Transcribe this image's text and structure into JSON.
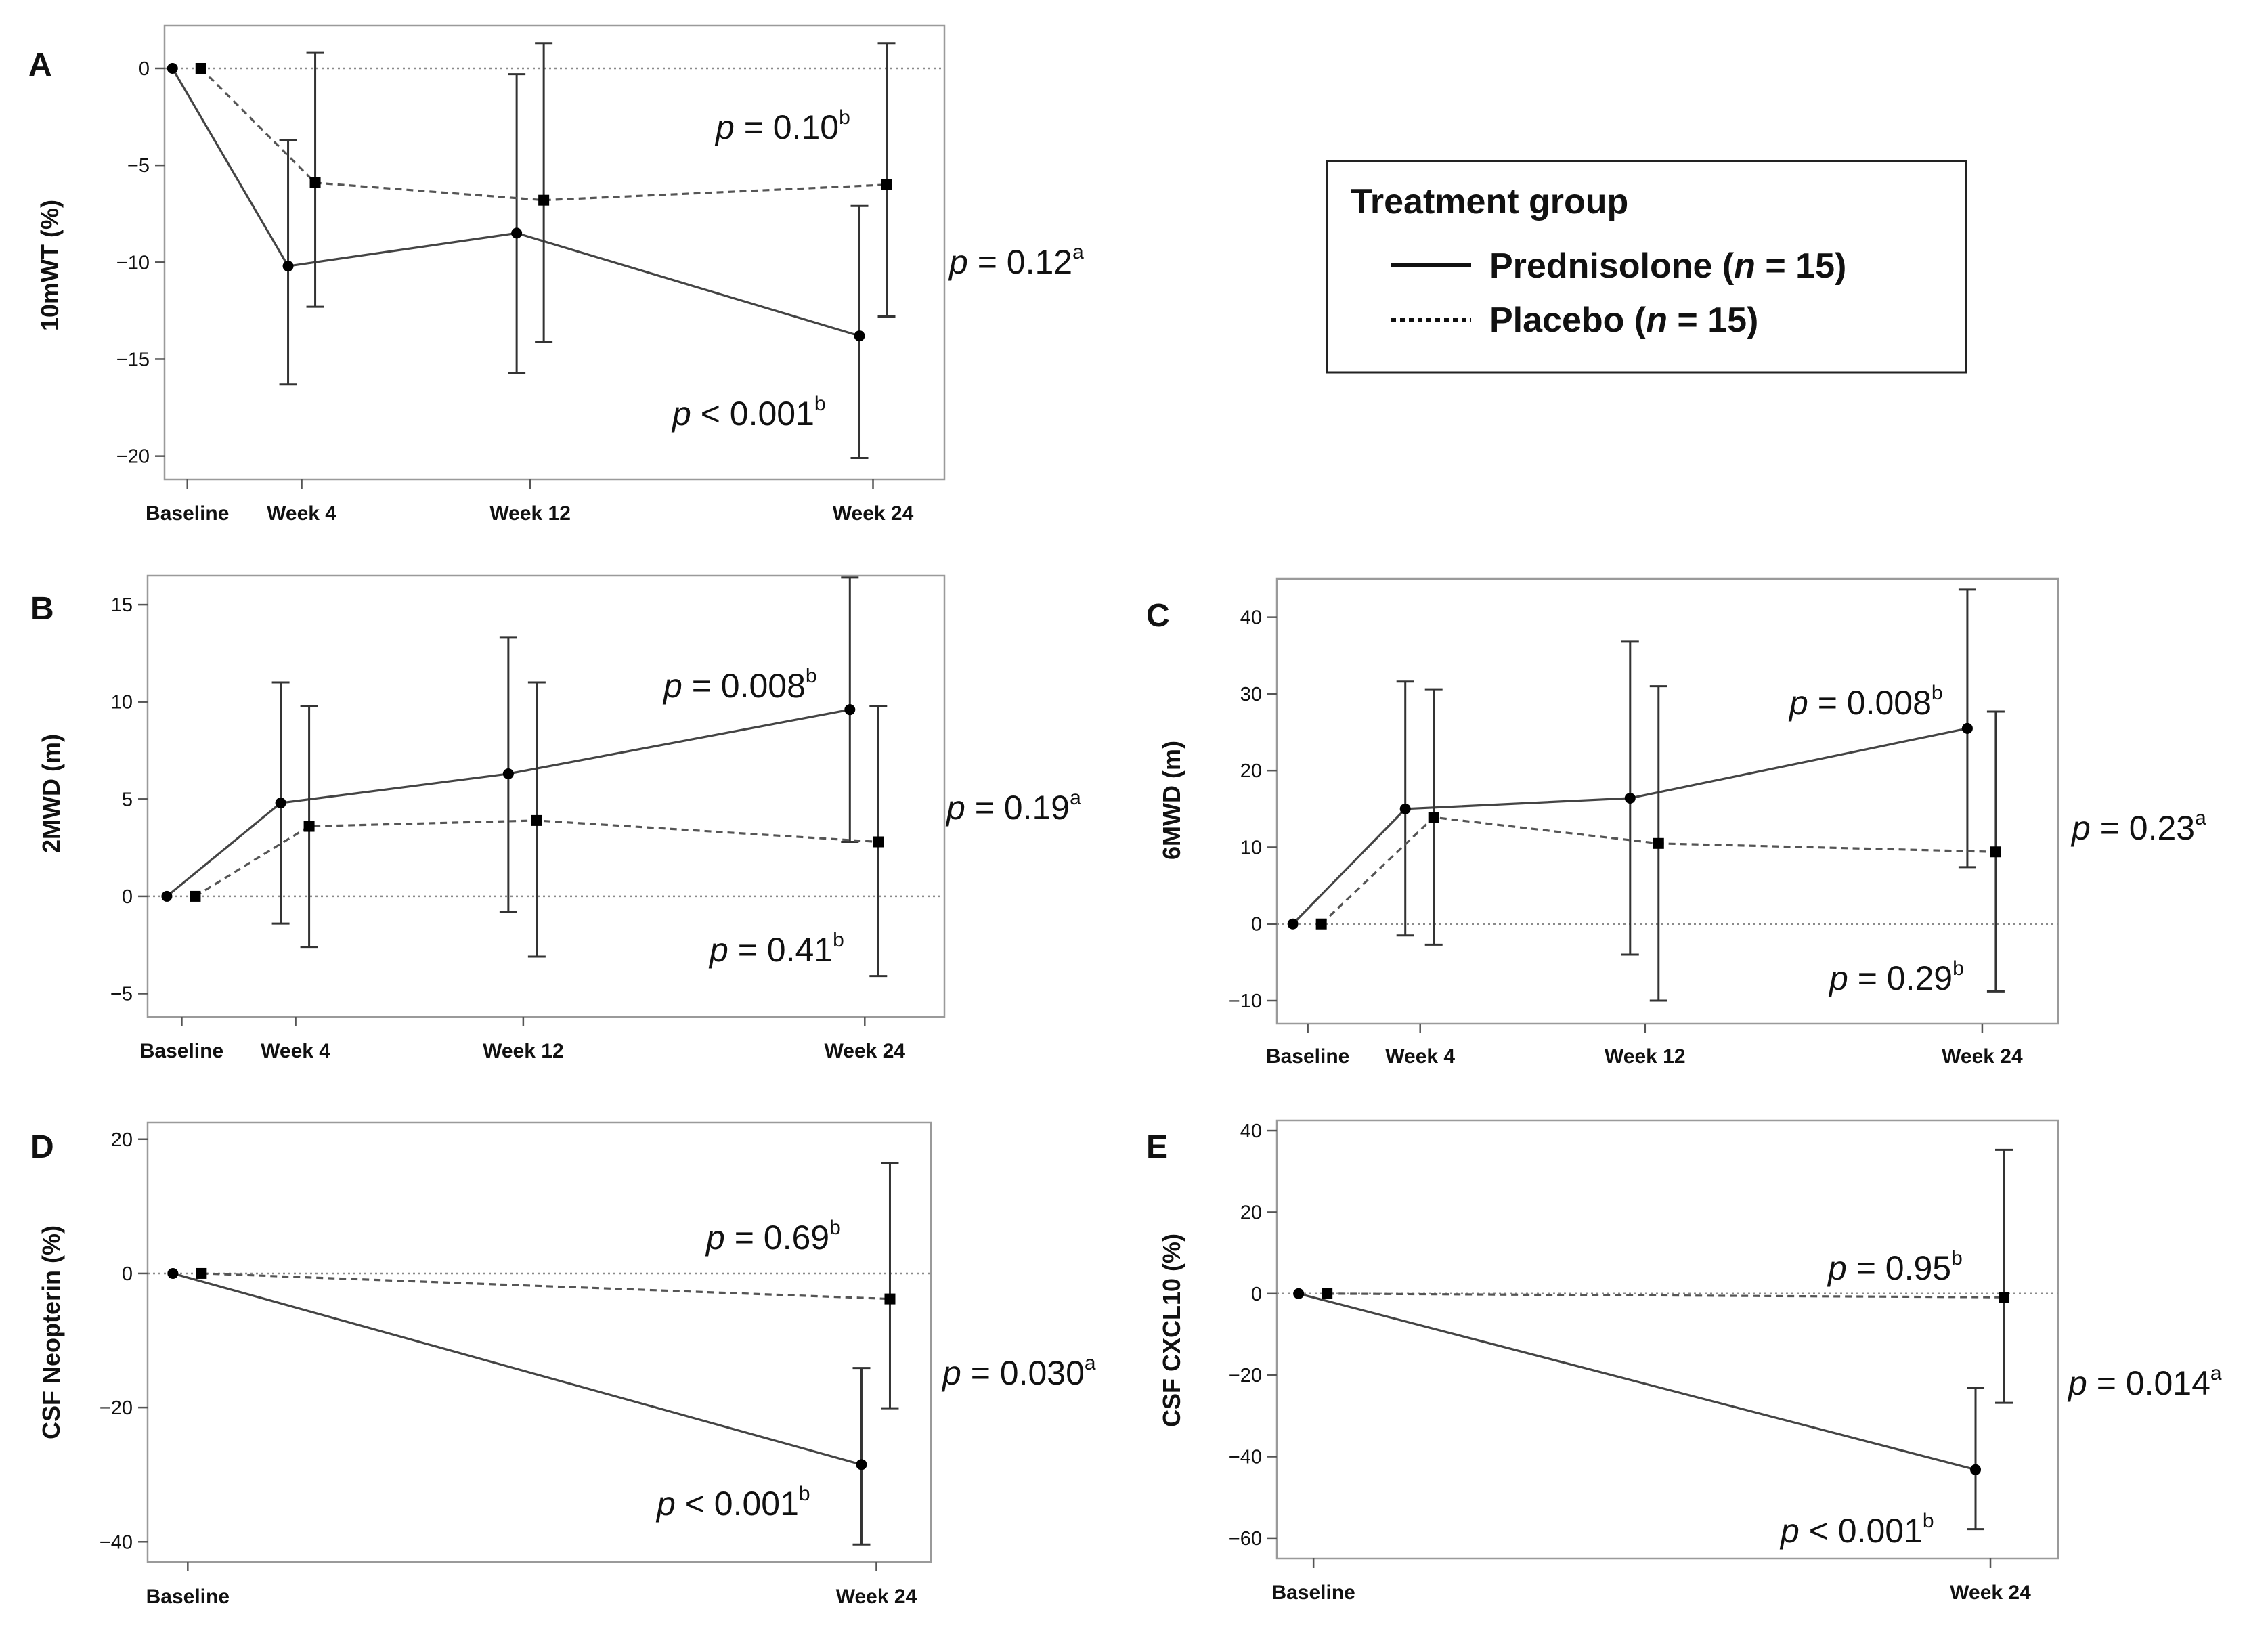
{
  "legend": {
    "title": "Treatment group",
    "items": [
      {
        "pre": "Prednisolone (",
        "n_label": "n",
        "post": " = 15)",
        "style": "solid"
      },
      {
        "pre": "Placebo (",
        "n_label": "n",
        "post": " = 15)",
        "style": "dotted"
      }
    ]
  },
  "chart_data": [
    {
      "id": "A",
      "type": "line",
      "ylabel": "10mWT (%)",
      "x": [
        "Baseline",
        "Week 4",
        "Week 12",
        "Week 24"
      ],
      "x_num": [
        0,
        4,
        12,
        24
      ],
      "xlim": [
        -0.8,
        26.5
      ],
      "ylim": [
        -21.2,
        2.2
      ],
      "yticks": [
        0,
        -5,
        -10,
        -15,
        -20
      ],
      "series": [
        {
          "name": "Prednisolone",
          "values": [
            0,
            -10.2,
            -8.5,
            -13.8
          ],
          "lower": [
            null,
            -16.3,
            -15.7,
            -20.1
          ],
          "upper": [
            null,
            -3.7,
            -0.3,
            -7.1
          ]
        },
        {
          "name": "Placebo",
          "values": [
            0,
            -5.9,
            -6.8,
            -6.0
          ],
          "lower": [
            null,
            -12.3,
            -14.1,
            -12.8
          ],
          "upper": [
            null,
            0.8,
            1.3,
            1.3
          ]
        }
      ],
      "pvalues": [
        {
          "pre": "p",
          "text": " = 0.10",
          "sup": "b",
          "anchor": "placebo-week24"
        },
        {
          "pre": "p",
          "text": " = 0.12",
          "sup": "a",
          "anchor": "between-groups"
        },
        {
          "pre": "p",
          "text": " < 0.001",
          "sup": "b",
          "anchor": "prednisolone-week24"
        }
      ]
    },
    {
      "id": "B",
      "type": "line",
      "ylabel": "2MWD (m)",
      "x": [
        "Baseline",
        "Week 4",
        "Week 12",
        "Week 24"
      ],
      "x_num": [
        0,
        4,
        12,
        24
      ],
      "xlim": [
        -1.2,
        26.8
      ],
      "ylim": [
        -6.2,
        16.5
      ],
      "yticks": [
        15,
        10,
        5,
        0,
        -5
      ],
      "series": [
        {
          "name": "Prednisolone",
          "values": [
            0,
            4.8,
            6.3,
            9.6
          ],
          "lower": [
            null,
            -1.4,
            -0.8,
            2.8
          ],
          "upper": [
            null,
            11.0,
            13.3,
            16.4
          ]
        },
        {
          "name": "Placebo",
          "values": [
            0,
            3.6,
            3.9,
            2.8
          ],
          "lower": [
            null,
            -2.6,
            -3.1,
            -4.1
          ],
          "upper": [
            null,
            9.8,
            11.0,
            9.8
          ]
        }
      ],
      "pvalues": [
        {
          "pre": "p",
          "text": " = 0.008",
          "sup": "b",
          "anchor": "prednisolone-week24"
        },
        {
          "pre": "p",
          "text": " = 0.19",
          "sup": "a",
          "anchor": "between-groups"
        },
        {
          "pre": "p",
          "text": " = 0.41",
          "sup": "b",
          "anchor": "placebo-week24"
        }
      ]
    },
    {
      "id": "C",
      "type": "line",
      "ylabel": "6MWD (m)",
      "x": [
        "Baseline",
        "Week 4",
        "Week 12",
        "Week 24"
      ],
      "x_num": [
        0,
        4,
        12,
        24
      ],
      "xlim": [
        -1.1,
        26.7
      ],
      "ylim": [
        -13.0,
        45.0
      ],
      "yticks": [
        40,
        30,
        20,
        10,
        0,
        -10
      ],
      "series": [
        {
          "name": "Prednisolone",
          "values": [
            0,
            15.0,
            16.4,
            25.5
          ],
          "lower": [
            null,
            -1.5,
            -4.0,
            7.4
          ],
          "upper": [
            null,
            31.6,
            36.8,
            43.6
          ]
        },
        {
          "name": "Placebo",
          "values": [
            0,
            13.9,
            10.5,
            9.4
          ],
          "lower": [
            null,
            -2.7,
            -10.0,
            -8.8
          ],
          "upper": [
            null,
            30.6,
            31.0,
            27.7
          ]
        }
      ],
      "pvalues": [
        {
          "pre": "p",
          "text": " = 0.008",
          "sup": "b",
          "anchor": "prednisolone-week24"
        },
        {
          "pre": "p",
          "text": " = 0.23",
          "sup": "a",
          "anchor": "between-groups"
        },
        {
          "pre": "p",
          "text": " = 0.29",
          "sup": "b",
          "anchor": "placebo-week24"
        }
      ]
    },
    {
      "id": "D",
      "type": "line",
      "ylabel": "CSF Neopterin (%)",
      "x": [
        "Baseline",
        "Week 24"
      ],
      "x_num": [
        0,
        24
      ],
      "xlim": [
        -1.4,
        25.9
      ],
      "ylim": [
        -43.0,
        22.5
      ],
      "yticks": [
        20,
        0,
        -20,
        -40
      ],
      "series": [
        {
          "name": "Prednisolone",
          "values": [
            0,
            -28.5
          ],
          "lower": [
            null,
            -40.4
          ],
          "upper": [
            null,
            -14.1
          ]
        },
        {
          "name": "Placebo",
          "values": [
            0,
            -3.8
          ],
          "lower": [
            null,
            -20.1
          ],
          "upper": [
            null,
            16.5
          ]
        }
      ],
      "pvalues": [
        {
          "pre": "p",
          "text": " = 0.69",
          "sup": "b",
          "anchor": "placebo-week24"
        },
        {
          "pre": "p",
          "text": " = 0.030",
          "sup": "a",
          "anchor": "between-groups"
        },
        {
          "pre": "p",
          "text": " < 0.001",
          "sup": "b",
          "anchor": "prednisolone-week24"
        }
      ]
    },
    {
      "id": "E",
      "type": "line",
      "ylabel": "CSF CXCL10 (%)",
      "x": [
        "Baseline",
        "Week 24"
      ],
      "x_num": [
        0,
        24
      ],
      "xlim": [
        -1.3,
        26.4
      ],
      "ylim": [
        -65.0,
        42.5
      ],
      "yticks": [
        40,
        20,
        0,
        -20,
        -40,
        -60
      ],
      "series": [
        {
          "name": "Prednisolone",
          "values": [
            0,
            -43.2
          ],
          "lower": [
            null,
            -57.8
          ],
          "upper": [
            null,
            -23.1
          ]
        },
        {
          "name": "Placebo",
          "values": [
            0,
            -0.9
          ],
          "lower": [
            null,
            -26.8
          ],
          "upper": [
            null,
            35.3
          ]
        }
      ],
      "pvalues": [
        {
          "pre": "p",
          "text": " = 0.95",
          "sup": "b",
          "anchor": "placebo-week24"
        },
        {
          "pre": "p",
          "text": " = 0.014",
          "sup": "a",
          "anchor": "between-groups"
        },
        {
          "pre": "p",
          "text": " < 0.001",
          "sup": "b",
          "anchor": "prednisolone-week24"
        }
      ]
    }
  ]
}
